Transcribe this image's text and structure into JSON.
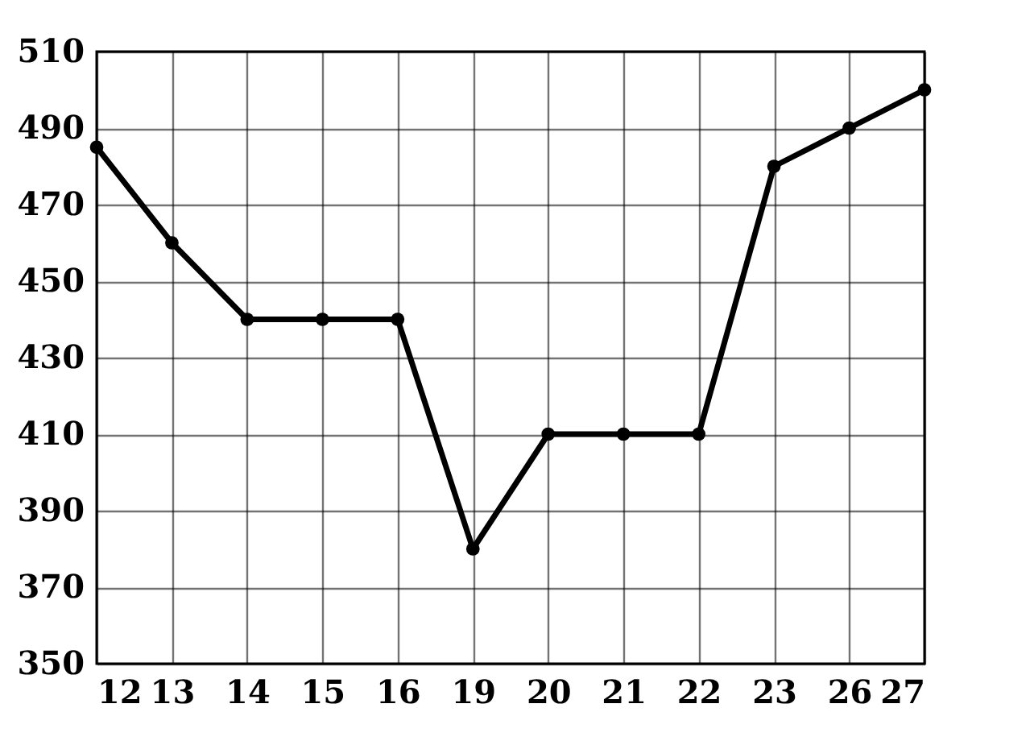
{
  "chart_data": {
    "type": "line",
    "categories": [
      "12",
      "13",
      "14",
      "15",
      "16",
      "19",
      "20",
      "21",
      "22",
      "23",
      "26",
      "27"
    ],
    "series": [
      {
        "color": "#000000",
        "values": [
          485,
          460,
          440,
          440,
          440,
          380,
          410,
          410,
          410,
          480,
          490,
          500
        ]
      }
    ],
    "ylim": [
      350,
      510
    ],
    "yticks": [
      350,
      370,
      390,
      410,
      430,
      450,
      470,
      490,
      510
    ],
    "grid": true,
    "marker": "circle",
    "line_style": "solid"
  }
}
